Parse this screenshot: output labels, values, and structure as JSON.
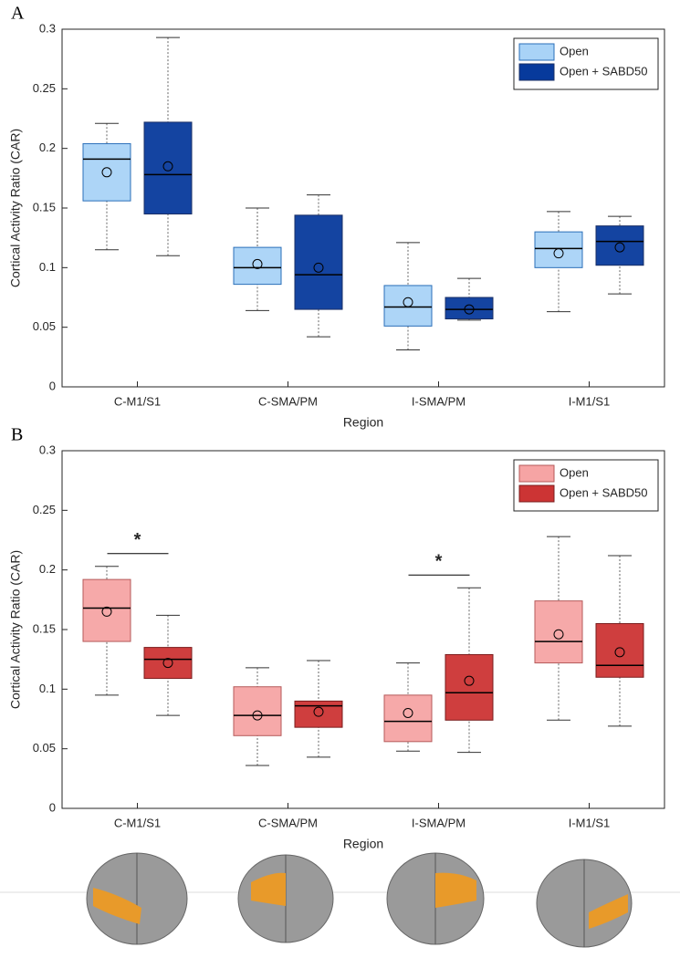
{
  "chart_data": [
    {
      "type": "box",
      "panel_label": "A",
      "xlabel": "Region",
      "ylabel": "Cortical Activity Ratio (CAR)",
      "categories": [
        "C-M1/S1",
        "C-SMA/PM",
        "I-SMA/PM",
        "I-M1/S1"
      ],
      "ylim": [
        0,
        0.3
      ],
      "yticks": [
        0,
        0.05,
        0.1,
        0.15,
        0.2,
        0.25,
        0.3
      ],
      "legend": "upper right",
      "series": [
        {
          "name": "Open",
          "color": "#a9d3f7",
          "edge": "#2b6fb8",
          "low": [
            0.115,
            0.064,
            0.031,
            0.063
          ],
          "q1": [
            0.156,
            0.086,
            0.051,
            0.1
          ],
          "median": [
            0.191,
            0.1,
            0.067,
            0.116
          ],
          "q3": [
            0.204,
            0.117,
            0.085,
            0.13
          ],
          "high": [
            0.221,
            0.15,
            0.121,
            0.147
          ],
          "mean": [
            0.18,
            0.103,
            0.071,
            0.112
          ]
        },
        {
          "name": "Open + SABD50",
          "color": "#073a9c",
          "edge": "#1a2f66",
          "low": [
            0.11,
            0.042,
            0.056,
            0.078
          ],
          "q1": [
            0.145,
            0.065,
            0.057,
            0.102
          ],
          "median": [
            0.178,
            0.094,
            0.065,
            0.122
          ],
          "q3": [
            0.222,
            0.144,
            0.075,
            0.135
          ],
          "high": [
            0.293,
            0.161,
            0.091,
            0.143
          ],
          "mean": [
            0.185,
            0.1,
            0.065,
            0.117
          ]
        }
      ]
    },
    {
      "type": "box",
      "panel_label": "B",
      "xlabel": "Region",
      "ylabel": "Cortical Activity Ratio (CAR)",
      "categories": [
        "C-M1/S1",
        "C-SMA/PM",
        "I-SMA/PM",
        "I-M1/S1"
      ],
      "ylim": [
        0,
        0.3
      ],
      "yticks": [
        0,
        0.05,
        0.1,
        0.15,
        0.2,
        0.25,
        0.3
      ],
      "legend": "upper right",
      "series": [
        {
          "name": "Open",
          "color": "#f6a4a4",
          "edge": "#b55a5a",
          "low": [
            0.095,
            0.036,
            0.048,
            0.074
          ],
          "q1": [
            0.14,
            0.061,
            0.056,
            0.122
          ],
          "median": [
            0.168,
            0.078,
            0.073,
            0.14
          ],
          "q3": [
            0.192,
            0.102,
            0.095,
            0.174
          ],
          "high": [
            0.203,
            0.118,
            0.122,
            0.228
          ],
          "mean": [
            0.165,
            0.078,
            0.08,
            0.146
          ]
        },
        {
          "name": "Open + SABD50",
          "color": "#cc3434",
          "edge": "#7a1c1c",
          "low": [
            0.078,
            0.043,
            0.047,
            0.069
          ],
          "q1": [
            0.109,
            0.068,
            0.074,
            0.11
          ],
          "median": [
            0.125,
            0.086,
            0.097,
            0.12
          ],
          "q3": [
            0.135,
            0.09,
            0.129,
            0.155
          ],
          "high": [
            0.162,
            0.124,
            0.185,
            0.212
          ],
          "mean": [
            0.122,
            0.081,
            0.107,
            0.131
          ]
        }
      ],
      "significance": [
        {
          "category": 0,
          "label": "*"
        },
        {
          "category": 2,
          "label": "*"
        }
      ]
    }
  ]
}
